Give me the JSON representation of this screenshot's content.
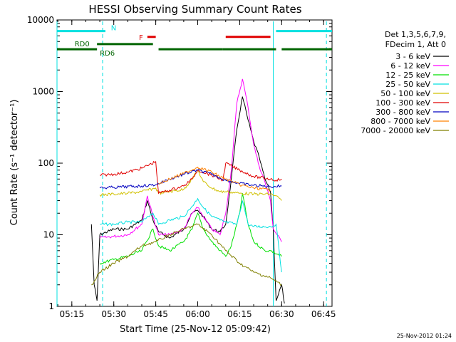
{
  "chart_data": {
    "type": "line",
    "title": "HESSI Observing Summary Count Rates",
    "xlabel": "Start Time (25-Nov-12 05:09:42)",
    "ylabel": "Count Rate (s⁻¹ detector⁻¹)",
    "y_scale": "log",
    "ylim": [
      1,
      10000
    ],
    "xlim": [
      "05:09:42",
      "06:48"
    ],
    "x_ticks": [
      "05:15",
      "05:30",
      "05:45",
      "06:00",
      "06:15",
      "06:30",
      "06:45"
    ],
    "y_ticks": [
      "1",
      "10",
      "100",
      "1000",
      "10000"
    ],
    "grid": false,
    "legend_position": "right",
    "legend_header": [
      "Det 1,3,5,6,7,9,",
      "FDecim 1, Att 0"
    ],
    "timestamp": "25-Nov-2012 01:24",
    "annotations": [
      {
        "label": "N",
        "color": "#00e0e0"
      },
      {
        "label": "RD0",
        "color": "#006400"
      },
      {
        "label": "RD6",
        "color": "#006400"
      },
      {
        "label": "F",
        "color": "#e00000"
      }
    ],
    "state_bars": [
      {
        "name": "N",
        "color": "#00e0e0",
        "y": 7000,
        "segments": [
          [
            "05:09:42",
            "05:27"
          ],
          [
            "06:28",
            "06:48"
          ]
        ]
      },
      {
        "name": "F",
        "color": "#e00000",
        "y": 5800,
        "segments": [
          [
            "05:42",
            "05:45"
          ],
          [
            "06:10",
            "06:26"
          ]
        ]
      },
      {
        "name": "RD0",
        "color": "#006400",
        "y": 4600,
        "segments": [
          [
            "05:24",
            "05:44"
          ]
        ]
      },
      {
        "name": "RD6",
        "color": "#006400",
        "y": 3900,
        "segments": [
          [
            "05:09:42",
            "05:24"
          ],
          [
            "05:46",
            "06:09"
          ],
          [
            "06:09",
            "06:28"
          ],
          [
            "06:30",
            "06:48"
          ]
        ]
      }
    ],
    "night_boundaries": [
      "05:09:42",
      "05:26",
      "06:27",
      "06:46"
    ],
    "series": [
      {
        "name": "3 - 6 keV",
        "color": "#000000",
        "points": [
          [
            "05:22",
            14
          ],
          [
            "05:23",
            2
          ],
          [
            "05:24",
            1.2
          ],
          [
            "05:25",
            10
          ],
          [
            "05:30",
            12
          ],
          [
            "05:35",
            12
          ],
          [
            "05:40",
            16
          ],
          [
            "05:42",
            30
          ],
          [
            "05:44",
            16
          ],
          [
            "05:46",
            11
          ],
          [
            "05:50",
            9
          ],
          [
            "05:55",
            12
          ],
          [
            "05:58",
            20
          ],
          [
            "06:00",
            22
          ],
          [
            "06:02",
            18
          ],
          [
            "06:05",
            12
          ],
          [
            "06:08",
            11
          ],
          [
            "06:10",
            14
          ],
          [
            "06:12",
            60
          ],
          [
            "06:14",
            300
          ],
          [
            "06:16",
            850
          ],
          [
            "06:18",
            400
          ],
          [
            "06:20",
            200
          ],
          [
            "06:22",
            120
          ],
          [
            "06:24",
            60
          ],
          [
            "06:26",
            40
          ],
          [
            "06:27",
            12
          ],
          [
            "06:28",
            1.2
          ],
          [
            "06:30",
            2
          ],
          [
            "06:31",
            1.1
          ]
        ]
      },
      {
        "name": "6 - 12 keV",
        "color": "#ff00ff",
        "points": [
          [
            "05:25",
            9
          ],
          [
            "05:30",
            9.5
          ],
          [
            "05:35",
            10
          ],
          [
            "05:40",
            14
          ],
          [
            "05:42",
            35
          ],
          [
            "05:44",
            18
          ],
          [
            "05:46",
            10
          ],
          [
            "05:50",
            10
          ],
          [
            "05:55",
            12
          ],
          [
            "05:58",
            20
          ],
          [
            "06:00",
            24
          ],
          [
            "06:02",
            18
          ],
          [
            "06:05",
            12
          ],
          [
            "06:08",
            10
          ],
          [
            "06:10",
            20
          ],
          [
            "06:12",
            80
          ],
          [
            "06:14",
            700
          ],
          [
            "06:16",
            1500
          ],
          [
            "06:18",
            600
          ],
          [
            "06:20",
            180
          ],
          [
            "06:22",
            90
          ],
          [
            "06:24",
            55
          ],
          [
            "06:26",
            30
          ],
          [
            "06:27",
            12
          ],
          [
            "06:30",
            8
          ]
        ]
      },
      {
        "name": "12 - 25 keV",
        "color": "#00e000",
        "points": [
          [
            "05:25",
            4
          ],
          [
            "05:30",
            4.5
          ],
          [
            "05:35",
            5
          ],
          [
            "05:40",
            6
          ],
          [
            "05:44",
            12
          ],
          [
            "05:46",
            7
          ],
          [
            "05:50",
            6
          ],
          [
            "05:55",
            8
          ],
          [
            "05:58",
            12
          ],
          [
            "06:00",
            20
          ],
          [
            "06:02",
            12
          ],
          [
            "06:05",
            8
          ],
          [
            "06:08",
            6
          ],
          [
            "06:10",
            5
          ],
          [
            "06:12",
            7
          ],
          [
            "06:15",
            20
          ],
          [
            "06:16",
            38
          ],
          [
            "06:18",
            14
          ],
          [
            "06:20",
            8
          ],
          [
            "06:24",
            6
          ],
          [
            "06:26",
            6
          ],
          [
            "06:30",
            5
          ]
        ]
      },
      {
        "name": "25 - 50 keV",
        "color": "#00e0e0",
        "points": [
          [
            "05:25",
            14
          ],
          [
            "05:30",
            14
          ],
          [
            "05:35",
            15
          ],
          [
            "05:40",
            15
          ],
          [
            "05:42",
            18
          ],
          [
            "05:44",
            20
          ],
          [
            "05:46",
            14
          ],
          [
            "05:50",
            16
          ],
          [
            "05:55",
            18
          ],
          [
            "05:58",
            25
          ],
          [
            "06:00",
            32
          ],
          [
            "06:02",
            24
          ],
          [
            "06:05",
            18
          ],
          [
            "06:08",
            16
          ],
          [
            "06:10",
            15
          ],
          [
            "06:14",
            14
          ],
          [
            "06:16",
            30
          ],
          [
            "06:18",
            14
          ],
          [
            "06:20",
            13
          ],
          [
            "06:26",
            13
          ],
          [
            "06:28",
            14
          ],
          [
            "06:30",
            3
          ]
        ]
      },
      {
        "name": "50 - 100 keV",
        "color": "#d0c000",
        "points": [
          [
            "05:25",
            36
          ],
          [
            "05:30",
            37
          ],
          [
            "05:35",
            38
          ],
          [
            "05:40",
            40
          ],
          [
            "05:45",
            45
          ],
          [
            "05:46",
            38
          ],
          [
            "05:50",
            40
          ],
          [
            "05:55",
            43
          ],
          [
            "05:58",
            60
          ],
          [
            "06:00",
            80
          ],
          [
            "06:02",
            55
          ],
          [
            "06:05",
            45
          ],
          [
            "06:08",
            40
          ],
          [
            "06:10",
            40
          ],
          [
            "06:15",
            38
          ],
          [
            "06:20",
            37
          ],
          [
            "06:26",
            37
          ],
          [
            "06:28",
            35
          ],
          [
            "06:30",
            30
          ]
        ]
      },
      {
        "name": "100 - 300 keV",
        "color": "#e00000",
        "points": [
          [
            "05:25",
            68
          ],
          [
            "05:30",
            70
          ],
          [
            "05:35",
            75
          ],
          [
            "05:40",
            85
          ],
          [
            "05:45",
            105
          ],
          [
            "05:46",
            38
          ],
          [
            "05:50",
            42
          ],
          [
            "05:55",
            48
          ],
          [
            "05:58",
            60
          ],
          [
            "06:00",
            80
          ],
          [
            "06:02",
            75
          ],
          [
            "06:05",
            68
          ],
          [
            "06:09",
            58
          ],
          [
            "06:10",
            100
          ],
          [
            "06:15",
            80
          ],
          [
            "06:20",
            65
          ],
          [
            "06:26",
            60
          ],
          [
            "06:28",
            58
          ],
          [
            "06:30",
            60
          ]
        ]
      },
      {
        "name": "300 - 800 keV",
        "color": "#0000c0",
        "points": [
          [
            "05:25",
            45
          ],
          [
            "05:30",
            46
          ],
          [
            "05:40",
            48
          ],
          [
            "05:45",
            50
          ],
          [
            "05:50",
            60
          ],
          [
            "05:55",
            70
          ],
          [
            "06:00",
            80
          ],
          [
            "06:05",
            70
          ],
          [
            "06:10",
            58
          ],
          [
            "06:15",
            52
          ],
          [
            "06:20",
            49
          ],
          [
            "06:26",
            47
          ],
          [
            "06:30",
            48
          ]
        ]
      },
      {
        "name": "800 - 7000 keV",
        "color": "#ff8000",
        "points": [
          [
            "05:46",
            52
          ],
          [
            "05:50",
            60
          ],
          [
            "05:55",
            72
          ],
          [
            "06:00",
            88
          ],
          [
            "06:05",
            75
          ],
          [
            "06:09",
            62
          ],
          [
            "06:10",
            60
          ],
          [
            "06:15",
            50
          ],
          [
            "06:20",
            45
          ],
          [
            "06:26",
            42
          ]
        ]
      },
      {
        "name": "7000 - 20000 keV",
        "color": "#808000",
        "points": [
          [
            "05:22",
            2
          ],
          [
            "05:25",
            3
          ],
          [
            "05:30",
            4
          ],
          [
            "05:35",
            5
          ],
          [
            "05:40",
            7
          ],
          [
            "05:45",
            8
          ],
          [
            "05:50",
            10
          ],
          [
            "05:55",
            12
          ],
          [
            "06:00",
            14
          ],
          [
            "06:05",
            10
          ],
          [
            "06:10",
            6
          ],
          [
            "06:15",
            4
          ],
          [
            "06:20",
            3
          ],
          [
            "06:26",
            2.5
          ],
          [
            "06:30",
            2
          ]
        ]
      }
    ]
  }
}
